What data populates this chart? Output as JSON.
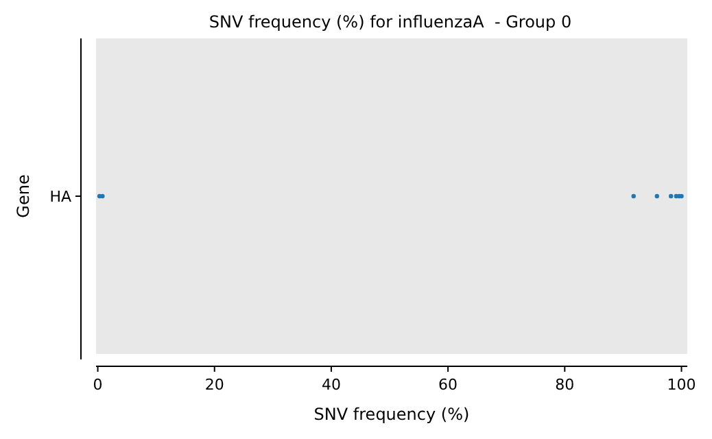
{
  "chart_data": {
    "type": "scatter",
    "title": "SNV frequency (%) for influenzaA  - Group 0",
    "xlabel": "SNV frequency (%)",
    "ylabel": "Gene",
    "categories": [
      "HA"
    ],
    "orientation": "horizontal",
    "xlim": [
      -0.3,
      101
    ],
    "xticks": [
      0,
      20,
      40,
      60,
      80,
      100
    ],
    "grid": false,
    "marker": "circle",
    "series": [
      {
        "color": "#1f77b4",
        "x": [
          "HA",
          "HA",
          "HA",
          "HA",
          "HA",
          "HA",
          "HA",
          "HA"
        ],
        "values": [
          0.3,
          0.8,
          91.8,
          95.8,
          98.2,
          99.1,
          99.6,
          100
        ]
      }
    ]
  }
}
